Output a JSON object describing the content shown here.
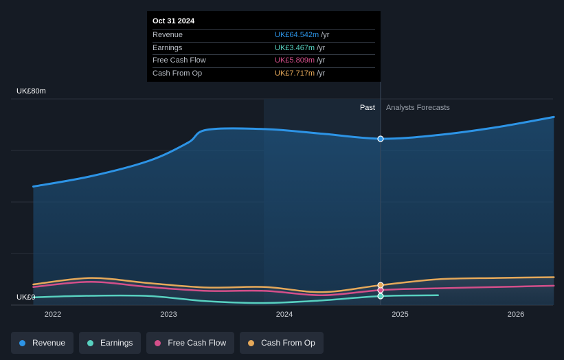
{
  "chart_data": {
    "type": "area",
    "y_axis": {
      "label_top": "UK£80m",
      "label_bottom": "UK£0",
      "ylim": [
        0,
        80
      ]
    },
    "x_ticks": [
      "2022",
      "2023",
      "2024",
      "2025",
      "2026"
    ],
    "period_labels": {
      "past": "Past",
      "forecast": "Analysts Forecasts"
    },
    "series": [
      {
        "name": "Revenue",
        "color": "#2d94e6",
        "points": [
          [
            "2021-10-31",
            46.0
          ],
          [
            "2022-04-30",
            50.0
          ],
          [
            "2022-10-31",
            56.0
          ],
          [
            "2023-03-01",
            63.0
          ],
          [
            "2023-04-30",
            68.0
          ],
          [
            "2023-10-31",
            68.3
          ],
          [
            "2024-04-30",
            66.5
          ],
          [
            "2024-10-31",
            64.542
          ],
          [
            "2025-04-30",
            66.0
          ],
          [
            "2025-10-31",
            69.0
          ],
          [
            "2026-04-30",
            73.0
          ]
        ]
      },
      {
        "name": "Earnings",
        "color": "#58d1c0",
        "points": [
          [
            "2021-10-31",
            3.0
          ],
          [
            "2022-04-30",
            3.6
          ],
          [
            "2022-10-31",
            3.5
          ],
          [
            "2023-04-30",
            1.5
          ],
          [
            "2023-10-31",
            0.8
          ],
          [
            "2024-04-30",
            1.8
          ],
          [
            "2024-10-31",
            3.467
          ],
          [
            "2025-04-30",
            3.8
          ]
        ]
      },
      {
        "name": "Free Cash Flow",
        "color": "#d44f8a",
        "points": [
          [
            "2021-10-31",
            7.0
          ],
          [
            "2022-04-30",
            9.0
          ],
          [
            "2022-10-31",
            7.0
          ],
          [
            "2023-04-30",
            5.5
          ],
          [
            "2023-10-31",
            5.5
          ],
          [
            "2024-04-30",
            3.8
          ],
          [
            "2024-10-31",
            5.809
          ],
          [
            "2025-04-30",
            6.5
          ],
          [
            "2025-10-31",
            7.0
          ],
          [
            "2026-04-30",
            7.5
          ]
        ]
      },
      {
        "name": "Cash From Op",
        "color": "#e6a95a",
        "points": [
          [
            "2021-10-31",
            8.0
          ],
          [
            "2022-04-30",
            10.5
          ],
          [
            "2022-10-31",
            8.5
          ],
          [
            "2023-04-30",
            6.8
          ],
          [
            "2023-10-31",
            7.0
          ],
          [
            "2024-04-30",
            5.0
          ],
          [
            "2024-10-31",
            7.717
          ],
          [
            "2025-04-30",
            10.0
          ],
          [
            "2025-10-31",
            10.5
          ],
          [
            "2026-04-30",
            10.8
          ]
        ]
      }
    ],
    "highlight_date": "2024-10-31",
    "tooltip": {
      "date": "Oct 31 2024",
      "rows": [
        {
          "label": "Revenue",
          "value": "UK£64.542m",
          "unit": "/yr",
          "color": "#2d94e6"
        },
        {
          "label": "Earnings",
          "value": "UK£3.467m",
          "unit": "/yr",
          "color": "#58d1c0"
        },
        {
          "label": "Free Cash Flow",
          "value": "UK£5.809m",
          "unit": "/yr",
          "color": "#d44f8a"
        },
        {
          "label": "Cash From Op",
          "value": "UK£7.717m",
          "unit": "/yr",
          "color": "#e6a95a"
        }
      ]
    },
    "legend": [
      {
        "label": "Revenue",
        "color": "#2d94e6"
      },
      {
        "label": "Earnings",
        "color": "#58d1c0"
      },
      {
        "label": "Free Cash Flow",
        "color": "#d44f8a"
      },
      {
        "label": "Cash From Op",
        "color": "#e6a95a"
      }
    ]
  }
}
